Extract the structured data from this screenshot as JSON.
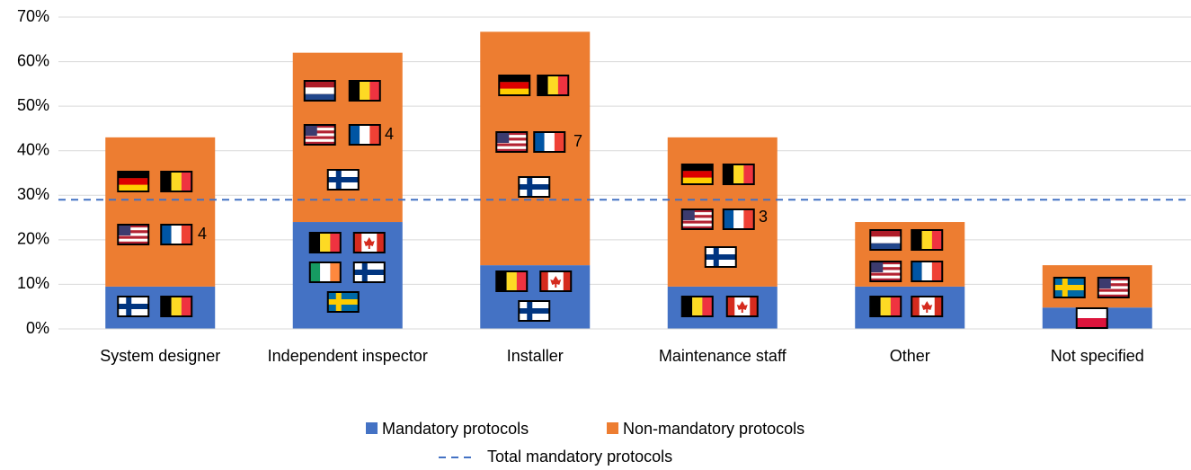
{
  "chart_data": {
    "type": "stacked_bar",
    "categories": [
      "System designer",
      "Independent inspector",
      "Installer",
      "Maintenance staff",
      "Other",
      "Not specified"
    ],
    "series": [
      {
        "name": "Mandatory protocols",
        "color": "#4472c4",
        "values": [
          9.5,
          24,
          14.3,
          9.5,
          9.5,
          4.8
        ]
      },
      {
        "name": "Non-mandatory protocols",
        "color": "#ed7d31",
        "values": [
          33.5,
          38,
          52.4,
          33.5,
          14.5,
          9.5
        ]
      }
    ],
    "line": {
      "name": "Total mandatory protocols",
      "color": "#4472c4",
      "value": 29,
      "style": "dashed"
    },
    "annotations": [
      "4",
      "4",
      "7",
      "3"
    ],
    "ylim": [
      0,
      70
    ],
    "yticks": [
      {
        "value": 0,
        "label": "0%"
      },
      {
        "value": 10,
        "label": "10%"
      },
      {
        "value": 20,
        "label": "20%"
      },
      {
        "value": 30,
        "label": "30%"
      },
      {
        "value": 40,
        "label": "40%"
      },
      {
        "value": 50,
        "label": "50%"
      },
      {
        "value": 60,
        "label": "60%"
      },
      {
        "value": 70,
        "label": "70%"
      }
    ],
    "grid": true
  }
}
